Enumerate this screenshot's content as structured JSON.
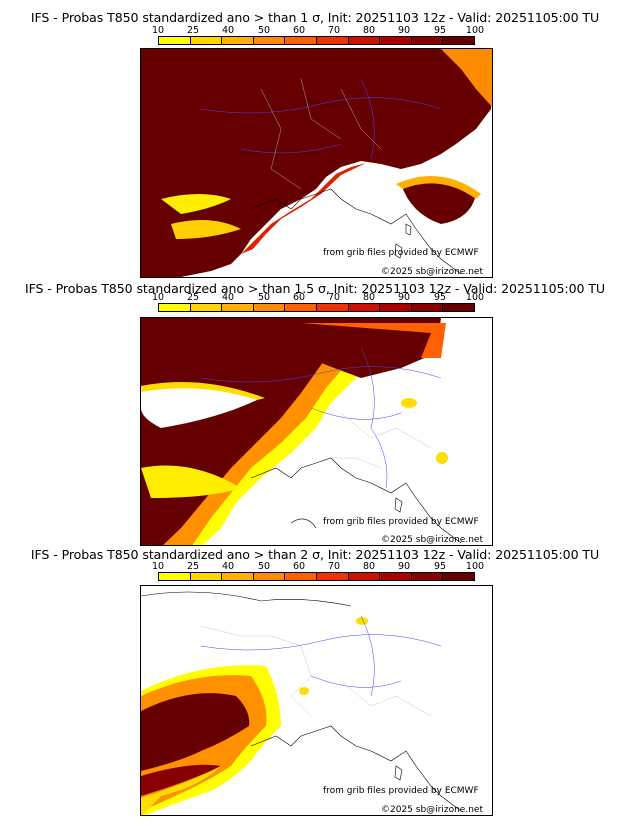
{
  "palette": [
    "#ffff00",
    "#ffd700",
    "#ffb000",
    "#ff8c00",
    "#ff6000",
    "#ee3300",
    "#cc1100",
    "#aa0000",
    "#880000",
    "#660000"
  ],
  "legend_ticks": [
    "10",
    "25",
    "40",
    "50",
    "60",
    "70",
    "80",
    "90",
    "95",
    "100"
  ],
  "panels": [
    {
      "title": "IFS - Probas T850  standardized ano > than 1 σ, Init: 20251103 12z - Valid: 20251105:00 TU",
      "credit_source": "from grib files provided by ECMWF",
      "credit_copyright": "©2025 sb@irizone.net"
    },
    {
      "title": "IFS - Probas T850  standardized ano > than 1.5 σ, Init: 20251103 12z - Valid: 20251105:00 TU",
      "credit_source": "from grib files provided by ECMWF",
      "credit_copyright": "©2025 sb@irizone.net"
    },
    {
      "title": "IFS - Probas T850  standardized ano > than 2 σ, Init: 20251103 12z - Valid: 20251105:00 TU",
      "credit_source": "from grib files provided by ECMWF",
      "credit_copyright": "©2025 sb@irizone.net"
    }
  ]
}
